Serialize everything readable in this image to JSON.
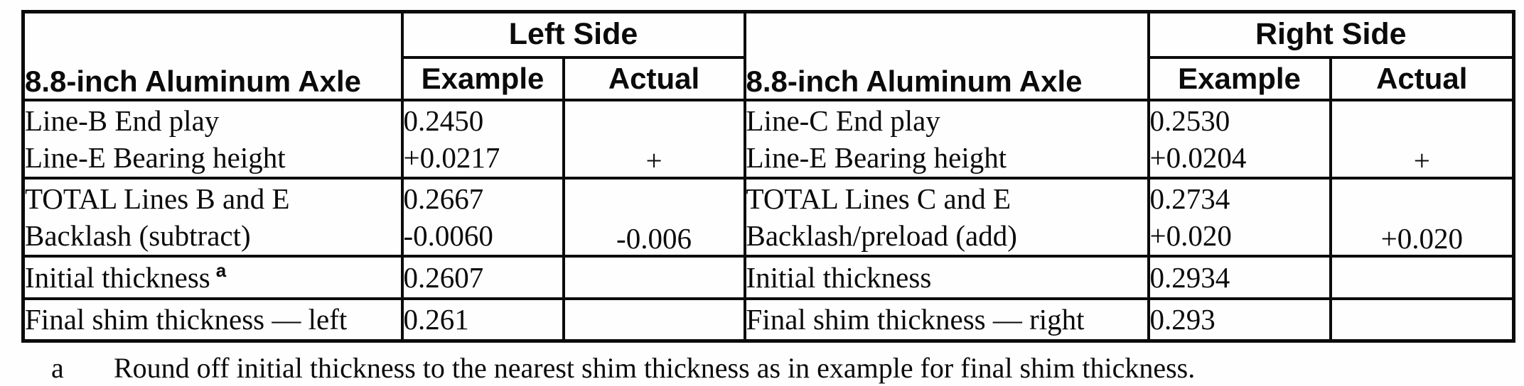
{
  "table": {
    "left_section": {
      "axle_header": "8.8-inch Aluminum Axle",
      "side_header": "Left Side",
      "example_header": "Example",
      "actual_header": "Actual"
    },
    "right_section": {
      "axle_header": "8.8-inch Aluminum Axle",
      "side_header": "Right Side",
      "example_header": "Example",
      "actual_header": "Actual"
    },
    "rows": [
      {
        "left": {
          "label1": "Line-B End play",
          "label2": "Line-E Bearing height",
          "example1": "0.2450",
          "example2": "+0.0217",
          "actual": "+"
        },
        "right": {
          "label1": "Line-C End play",
          "label2": "Line-E Bearing height",
          "example1": "0.2530",
          "example2": "+0.0204",
          "actual": "+"
        }
      },
      {
        "left": {
          "label1": "TOTAL Lines B and E",
          "label2": "Backlash (subtract)",
          "example1": "0.2667",
          "example2": "-0.0060",
          "actual": "-0.006"
        },
        "right": {
          "label1": "TOTAL Lines C and E",
          "label2": "Backlash/preload (add)",
          "example1": "0.2734",
          "example2": "+0.020",
          "actual": "+0.020"
        }
      },
      {
        "left": {
          "label1": "Initial thickness",
          "label_sup": "a",
          "example1": "0.2607",
          "actual": ""
        },
        "right": {
          "label1": "Initial thickness",
          "example1": "0.2934",
          "actual": ""
        }
      },
      {
        "left": {
          "label1": "Final shim thickness — left",
          "example1": "0.261",
          "actual": ""
        },
        "right": {
          "label1": "Final shim thickness — right",
          "example1": "0.293",
          "actual": ""
        }
      }
    ]
  },
  "footnote": {
    "marker": "a",
    "text": "Round off initial thickness to the nearest shim thickness as in example for final shim thickness."
  }
}
